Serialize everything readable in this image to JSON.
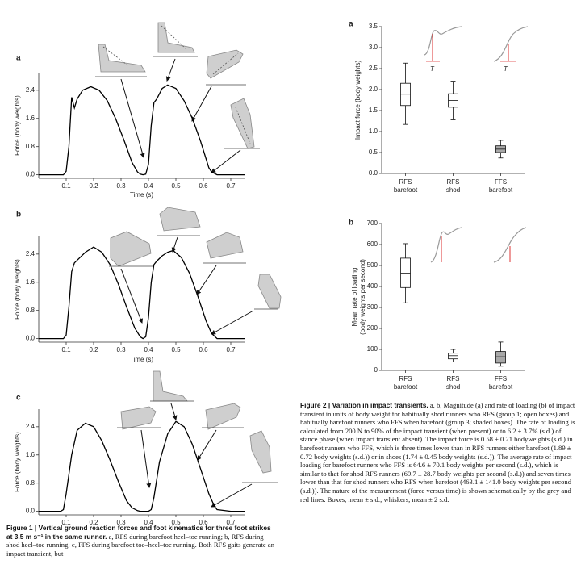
{
  "chart_data": [
    {
      "type": "line",
      "panel_label": "a",
      "ylabel": "Force (body weights)",
      "xlabel": "Time (s)",
      "x": [
        0,
        0.05,
        0.09,
        0.1,
        0.11,
        0.12,
        0.13,
        0.14,
        0.16,
        0.19,
        0.22,
        0.25,
        0.28,
        0.31,
        0.34,
        0.36,
        0.37,
        0.38,
        0.39,
        0.4,
        0.41,
        0.42,
        0.43,
        0.45,
        0.47,
        0.5,
        0.53,
        0.56,
        0.59,
        0.61,
        0.62,
        0.63,
        0.65,
        0.75
      ],
      "values": [
        0,
        0,
        0,
        0.1,
        0.8,
        2.2,
        1.9,
        2.15,
        2.4,
        2.5,
        2.4,
        2.1,
        1.6,
        1.0,
        0.35,
        0.08,
        0.02,
        0,
        0.02,
        0.3,
        1.4,
        2.05,
        2.15,
        2.45,
        2.55,
        2.45,
        2.1,
        1.6,
        0.95,
        0.45,
        0.2,
        0.08,
        0,
        0
      ],
      "color": "#000000",
      "xlim": [
        0,
        0.75
      ],
      "ylim": [
        -0.1,
        2.9
      ],
      "xticks": [
        0.1,
        0.2,
        0.3,
        0.4,
        0.5,
        0.6,
        0.7
      ],
      "yticks": [
        {
          "value": 0,
          "label": "0.0"
        },
        0.8,
        1.6,
        2.4
      ],
      "grid": false
    },
    {
      "type": "line",
      "panel_label": "b",
      "ylabel": "Force (body weights)",
      "xlabel": "Time (s)",
      "x": [
        0,
        0.09,
        0.1,
        0.11,
        0.12,
        0.13,
        0.15,
        0.17,
        0.2,
        0.23,
        0.26,
        0.29,
        0.32,
        0.35,
        0.37,
        0.38,
        0.39,
        0.4,
        0.41,
        0.42,
        0.43,
        0.45,
        0.47,
        0.49,
        0.52,
        0.55,
        0.58,
        0.61,
        0.63,
        0.65,
        0.75
      ],
      "values": [
        0,
        0,
        0.1,
        0.9,
        1.9,
        2.15,
        2.3,
        2.45,
        2.6,
        2.45,
        2.1,
        1.55,
        0.9,
        0.3,
        0.05,
        0,
        0.05,
        0.6,
        1.6,
        2.1,
        2.2,
        2.35,
        2.45,
        2.5,
        2.3,
        1.85,
        1.2,
        0.5,
        0.15,
        0,
        0
      ],
      "color": "#000000",
      "xlim": [
        0,
        0.75
      ],
      "ylim": [
        -0.1,
        2.9
      ],
      "xticks": [
        0.1,
        0.2,
        0.3,
        0.4,
        0.5,
        0.6,
        0.7
      ],
      "yticks": [
        {
          "value": 0,
          "label": "0.0"
        },
        0.8,
        1.6,
        2.4
      ],
      "grid": false
    },
    {
      "type": "line",
      "panel_label": "c",
      "ylabel": "Force (body weights)",
      "x": [
        0,
        0.08,
        0.09,
        0.1,
        0.12,
        0.14,
        0.17,
        0.2,
        0.23,
        0.26,
        0.29,
        0.32,
        0.34,
        0.36,
        0.37,
        0.4,
        0.41,
        0.42,
        0.44,
        0.47,
        0.5,
        0.53,
        0.56,
        0.59,
        0.62,
        0.64,
        0.65,
        0.7,
        0.75
      ],
      "values": [
        0,
        0,
        0.05,
        0.5,
        1.6,
        2.3,
        2.5,
        2.4,
        2.0,
        1.45,
        0.85,
        0.3,
        0.1,
        0.02,
        0,
        0,
        0.05,
        0.4,
        1.4,
        2.2,
        2.55,
        2.4,
        1.9,
        1.2,
        0.5,
        0.15,
        0.05,
        0,
        0
      ],
      "color": "#000000",
      "xlim": [
        0,
        0.75
      ],
      "ylim": [
        -0.1,
        2.9
      ],
      "xticks": [
        0.1,
        0.2,
        0.3,
        0.4,
        0.5,
        0.6,
        0.7
      ],
      "yticks": [
        {
          "value": 0,
          "label": "0.0"
        },
        0.8,
        1.6,
        2.4
      ],
      "grid": false
    },
    {
      "type": "box",
      "panel_label": "a",
      "ylabel": "Impact force (body weights)",
      "inset_labels": [
        "T",
        "T"
      ],
      "categories": [
        [
          "RFS",
          "barefoot"
        ],
        [
          "RFS",
          "shod"
        ],
        [
          "FFS",
          "barefoot"
        ]
      ],
      "boxes": [
        {
          "whislo": 1.17,
          "q1": 1.62,
          "med": 1.89,
          "q3": 2.15,
          "whishi": 2.63
        },
        {
          "whislo": 1.28,
          "q1": 1.58,
          "med": 1.74,
          "q3": 1.9,
          "whishi": 2.2
        },
        {
          "whislo": 0.37,
          "q1": 0.5,
          "med": 0.58,
          "q3": 0.66,
          "whishi": 0.79
        }
      ],
      "colors": [
        "#ffffff",
        "#ffffff",
        "#a8a8a8"
      ],
      "ylim": [
        0,
        3.5
      ],
      "yticks": [
        {
          "value": 0,
          "label": "0.0"
        },
        0.5,
        {
          "value": 1,
          "label": "1.0"
        },
        1.5,
        {
          "value": 2,
          "label": "2.0"
        },
        2.5,
        {
          "value": 3,
          "label": "3.0"
        },
        3.5
      ]
    },
    {
      "type": "box",
      "panel_label": "b",
      "ylabel": [
        "Mean rate of loading",
        "(body weights per second)"
      ],
      "categories": [
        [
          "RFS",
          "barefoot"
        ],
        [
          "RFS",
          "shod"
        ],
        [
          "FFS",
          "barefoot"
        ]
      ],
      "boxes": [
        {
          "whislo": 322,
          "q1": 395,
          "med": 463,
          "q3": 535,
          "whishi": 604
        },
        {
          "whislo": 40,
          "q1": 55,
          "med": 70,
          "q3": 82,
          "whishi": 100
        },
        {
          "whislo": 20,
          "q1": 35,
          "med": 65,
          "q3": 90,
          "whishi": 135
        }
      ],
      "colors": [
        "#ffffff",
        "#ffffff",
        "#a8a8a8"
      ],
      "ylim": [
        0,
        700
      ],
      "yticks": [
        0,
        100,
        200,
        300,
        400,
        500,
        600,
        700
      ]
    }
  ],
  "figure1_caption": {
    "title": "Figure 1 | Vertical ground reaction forces and foot kinematics for three foot strikes at 3.5 m s⁻¹ in the same runner.",
    "body": " a, RFS during barefoot heel–toe running; b, RFS during shod heel–toe running; c, FFS during barefoot toe–heel–toe running. Both RFS gaits generate an impact transient, but"
  },
  "figure2_caption": {
    "title": "Figure 2 | Variation in impact transients.",
    "body": " a, b, Magnitude (a) and rate of loading (b) of impact transient in units of body weight for habitually shod runners who RFS (group 1; open boxes) and habitually barefoot runners who FFS when barefoot (group 3; shaded boxes). The rate of loading is calculated from 200 N to 90% of the impact transient (when present) or to 6.2 ± 3.7% (s.d.) of stance phase (when impact transient absent). The impact force is 0.58 ± 0.21 bodyweights (s.d.) in barefoot runners who FFS, which is three times lower than in RFS runners either barefoot (1.89 ± 0.72 body weights (s.d.)) or in shoes (1.74 ± 0.45 body weights (s.d.)). The average rate of impact loading for barefoot runners who FFS is 64.6 ± 70.1 body weights per second (s.d.), which is similar to that for shod RFS runners (69.7 ± 28.7 body weights per second (s.d.)) and seven times lower than that for shod runners who RFS when barefoot (463.1 ± 141.0 body weights per second (s.d.)). The nature of the measurement (force versus time) is shown schematically by the grey and red lines. Boxes, mean ± s.d.; whiskers, mean ± 2 s.d."
  }
}
